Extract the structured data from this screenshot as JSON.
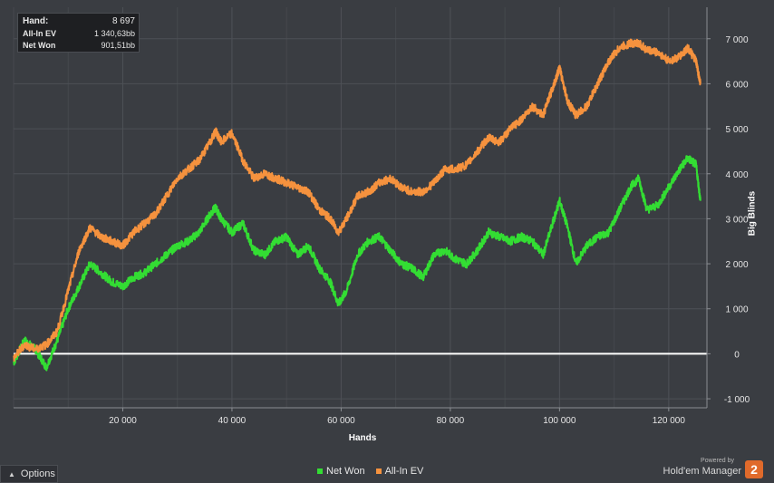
{
  "info_box": {
    "rows": [
      {
        "label": "Hand:",
        "value": "8 697"
      },
      {
        "label": "All-In EV",
        "value": "1 340,63bb"
      },
      {
        "label": "Net Won",
        "value": "901,51bb"
      }
    ]
  },
  "options_label": "Options",
  "brand": {
    "powered_by": "Powered by",
    "name": "Hold'em Manager",
    "badge": "2"
  },
  "colors": {
    "net_won": "#33dd33",
    "all_in_ev": "#f5923e",
    "zero_line": "#ffffff",
    "background": "#3a3d42",
    "grid": "#4d5056"
  },
  "chart_data": {
    "type": "line",
    "xlabel": "Hands",
    "ylabel": "Big Blinds",
    "xlim": [
      0,
      127000
    ],
    "ylim": [
      -1200,
      7700
    ],
    "x_ticks": [
      20000,
      40000,
      60000,
      80000,
      100000,
      120000
    ],
    "x_tick_labels": [
      "20 000",
      "40 000",
      "60 000",
      "80 000",
      "100 000",
      "120 000"
    ],
    "y_ticks": [
      -1000,
      0,
      1000,
      2000,
      3000,
      4000,
      5000,
      6000,
      7000
    ],
    "y_tick_labels": [
      "-1 000",
      "0",
      "1 000",
      "2 000",
      "3 000",
      "4 000",
      "5 000",
      "6 000",
      "7 000"
    ],
    "grid": true,
    "legend_position": "bottom-center",
    "series": [
      {
        "name": "Net Won",
        "color": "#33dd33",
        "x": [
          0,
          2000,
          4000,
          6000,
          8000,
          10000,
          12000,
          14000,
          16000,
          18000,
          20000,
          22000,
          24000,
          26000,
          28000,
          30000,
          32000,
          34000,
          36000,
          37000,
          38000,
          40000,
          42000,
          44000,
          46000,
          48000,
          50000,
          52000,
          54000,
          56000,
          58000,
          59500,
          61000,
          63000,
          65000,
          67000,
          69000,
          71000,
          73000,
          75000,
          77000,
          79000,
          81000,
          83000,
          85000,
          87000,
          89000,
          91000,
          93000,
          95000,
          97000,
          99000,
          100000,
          101500,
          103000,
          105000,
          107000,
          109000,
          111000,
          113000,
          114500,
          116000,
          118000,
          120000,
          122000,
          123500,
          125000,
          125800
        ],
        "y": [
          -200,
          300,
          100,
          -300,
          300,
          1000,
          1500,
          2000,
          1800,
          1600,
          1500,
          1700,
          1800,
          2000,
          2200,
          2400,
          2500,
          2700,
          3100,
          3250,
          3000,
          2700,
          2900,
          2300,
          2200,
          2500,
          2600,
          2200,
          2400,
          1900,
          1600,
          1100,
          1400,
          2200,
          2500,
          2600,
          2300,
          2000,
          1900,
          1700,
          2200,
          2300,
          2100,
          2000,
          2300,
          2700,
          2600,
          2500,
          2600,
          2500,
          2200,
          3000,
          3400,
          2800,
          2000,
          2400,
          2600,
          2700,
          3200,
          3700,
          3900,
          3200,
          3300,
          3700,
          4100,
          4350,
          4200,
          3400
        ]
      },
      {
        "name": "All-In EV",
        "color": "#f5923e",
        "x": [
          0,
          2000,
          4000,
          6000,
          8000,
          10000,
          12000,
          14000,
          16000,
          18000,
          20000,
          22000,
          24000,
          26000,
          28000,
          30000,
          32000,
          34000,
          36000,
          37000,
          38000,
          40000,
          42000,
          44000,
          46000,
          48000,
          50000,
          52000,
          54000,
          56000,
          58000,
          59500,
          61000,
          63000,
          65000,
          67000,
          69000,
          71000,
          73000,
          75000,
          77000,
          79000,
          81000,
          83000,
          85000,
          87000,
          89000,
          91000,
          93000,
          95000,
          97000,
          99000,
          100000,
          101500,
          103000,
          105000,
          107000,
          109000,
          111000,
          113000,
          114500,
          116000,
          118000,
          120000,
          122000,
          123500,
          125000,
          125800
        ],
        "y": [
          -100,
          200,
          100,
          200,
          500,
          1400,
          2300,
          2800,
          2600,
          2500,
          2400,
          2700,
          2900,
          3100,
          3500,
          3900,
          4100,
          4300,
          4700,
          4950,
          4700,
          4900,
          4300,
          3900,
          4000,
          3900,
          3800,
          3700,
          3600,
          3200,
          3000,
          2700,
          3000,
          3500,
          3600,
          3800,
          3900,
          3700,
          3600,
          3600,
          3800,
          4100,
          4100,
          4200,
          4500,
          4800,
          4700,
          5000,
          5200,
          5500,
          5300,
          6000,
          6350,
          5600,
          5300,
          5500,
          6000,
          6500,
          6800,
          6900,
          6900,
          6750,
          6700,
          6500,
          6600,
          6800,
          6500,
          6000
        ]
      }
    ]
  }
}
